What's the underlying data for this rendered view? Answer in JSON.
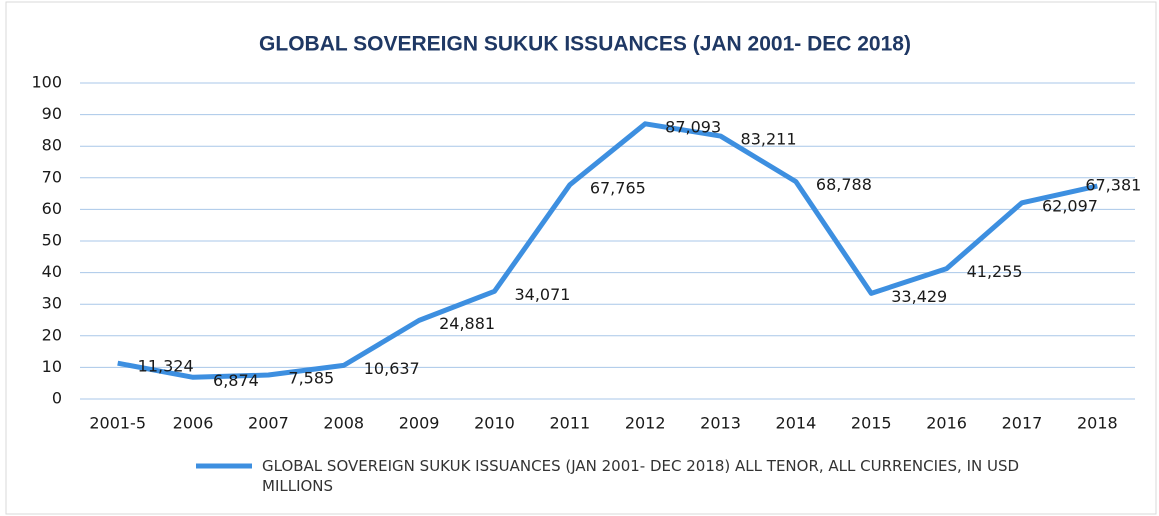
{
  "chart_data": {
    "type": "line",
    "title": "GLOBAL SOVEREIGN SUKUK ISSUANCES (JAN 2001- DEC 2018)",
    "categories": [
      "2001-5",
      "2006",
      "2007",
      "2008",
      "2009",
      "2010",
      "2011",
      "2012",
      "2013",
      "2014",
      "2015",
      "2016",
      "2017",
      "2018"
    ],
    "series": [
      {
        "name": "GLOBAL SOVEREIGN SUKUK ISSUANCES (JAN 2001- DEC 2018) ALL TENOR, ALL CURRENCIES, IN USD MILLIONS",
        "color": "#3d8fe0",
        "values": [
          11.324,
          6.874,
          7.585,
          10.637,
          24.881,
          34.071,
          67.765,
          87.093,
          83.211,
          68.788,
          33.429,
          41.255,
          62.097,
          67.381
        ],
        "value_labels": [
          "11,324",
          "6,874",
          "7,585",
          "10,637",
          "24,881",
          "34,071",
          "67,765",
          "87,093",
          "83,211",
          "68,788",
          "33,429",
          "41,255",
          "62,097",
          "67,381"
        ]
      }
    ],
    "ylim": [
      0,
      100
    ],
    "yticks": [
      0,
      10,
      20,
      30,
      40,
      50,
      60,
      70,
      80,
      90,
      100
    ],
    "grid": true,
    "legend": "bottom"
  }
}
